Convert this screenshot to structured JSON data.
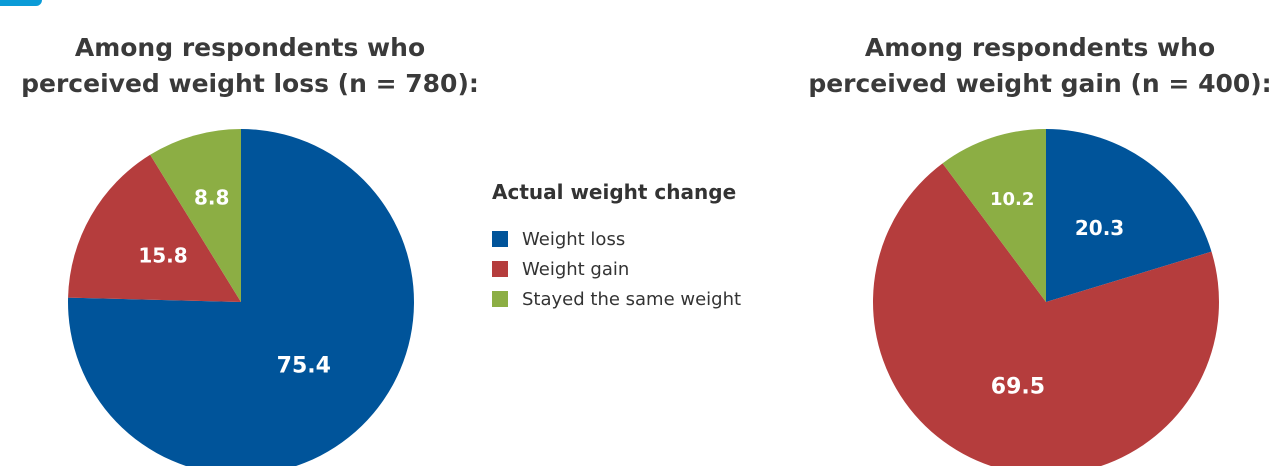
{
  "legend": {
    "title": "Actual weight change",
    "items": [
      {
        "label": "Weight loss",
        "color": "#00549a"
      },
      {
        "label": "Weight gain",
        "color": "#b53d3d"
      },
      {
        "label": "Stayed the same weight",
        "color": "#8cae44"
      }
    ]
  },
  "chart_data": [
    {
      "type": "pie",
      "title": "Among respondents who perceived weight loss (n = 780):",
      "categories": [
        "Weight loss",
        "Weight gain",
        "Stayed the same weight"
      ],
      "values": [
        75.4,
        15.8,
        8.8
      ],
      "labels": [
        "75.4",
        "15.8",
        "8.8"
      ],
      "colors": [
        "#00549a",
        "#b53d3d",
        "#8cae44"
      ]
    },
    {
      "type": "pie",
      "title": "Among respondents who perceived weight gain (n = 400):",
      "categories": [
        "Weight loss",
        "Weight gain",
        "Stayed the same weight"
      ],
      "values": [
        20.3,
        69.5,
        10.2
      ],
      "labels": [
        "20.3",
        "69.5",
        "10.2"
      ],
      "colors": [
        "#00549a",
        "#b53d3d",
        "#8cae44"
      ]
    }
  ]
}
